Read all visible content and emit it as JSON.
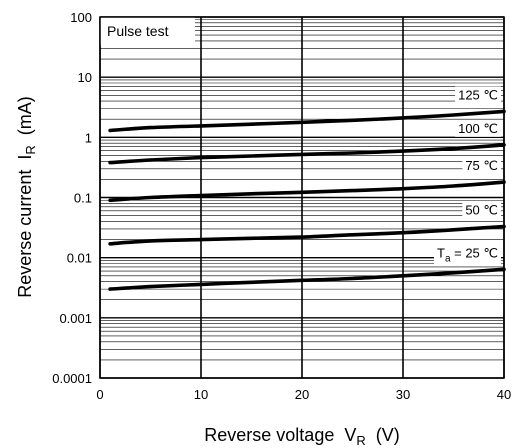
{
  "chart_data": {
    "type": "line",
    "y_scale": "log",
    "xlim": [
      0,
      40
    ],
    "ylim": [
      0.0001,
      100
    ],
    "x_ticks": [
      "0",
      "10",
      "20",
      "30",
      "40"
    ],
    "y_ticks": [
      "100",
      "10",
      "1",
      "0.1",
      "0.01",
      "0.001",
      "0.0001"
    ],
    "xlabel": {
      "main": "Reverse voltage  V",
      "sub": "R",
      "unit": "  (V)"
    },
    "ylabel": {
      "main": "Reverse current  I",
      "sub": "R",
      "unit": "  (mA)"
    },
    "annotation": "Pulse test",
    "grid": true,
    "series": [
      {
        "label_main": "125 ℃",
        "label_pre": "",
        "label_sub": "",
        "x": [
          1,
          5,
          10,
          15,
          20,
          25,
          30,
          35,
          40
        ],
        "y": [
          1.3,
          1.45,
          1.55,
          1.65,
          1.78,
          1.92,
          2.1,
          2.35,
          2.7
        ]
      },
      {
        "label_main": "100 ℃",
        "label_pre": "",
        "label_sub": "",
        "x": [
          1,
          5,
          10,
          15,
          20,
          25,
          30,
          35,
          40
        ],
        "y": [
          0.38,
          0.42,
          0.46,
          0.49,
          0.52,
          0.55,
          0.59,
          0.65,
          0.75
        ]
      },
      {
        "label_main": "75 ℃",
        "label_pre": "",
        "label_sub": "",
        "x": [
          1,
          5,
          10,
          15,
          20,
          25,
          30,
          35,
          40
        ],
        "y": [
          0.09,
          0.1,
          0.108,
          0.115,
          0.122,
          0.13,
          0.14,
          0.155,
          0.18
        ]
      },
      {
        "label_main": "50 ℃",
        "label_pre": "",
        "label_sub": "",
        "x": [
          1,
          5,
          10,
          15,
          20,
          25,
          30,
          35,
          40
        ],
        "y": [
          0.017,
          0.019,
          0.02,
          0.021,
          0.022,
          0.024,
          0.026,
          0.029,
          0.033
        ]
      },
      {
        "label_main": " = 25 ℃",
        "label_pre": "T",
        "label_sub": "a",
        "x": [
          1,
          5,
          10,
          15,
          20,
          25,
          30,
          35,
          40
        ],
        "y": [
          0.003,
          0.0033,
          0.0036,
          0.0039,
          0.0042,
          0.0045,
          0.005,
          0.0056,
          0.0064
        ]
      }
    ]
  }
}
